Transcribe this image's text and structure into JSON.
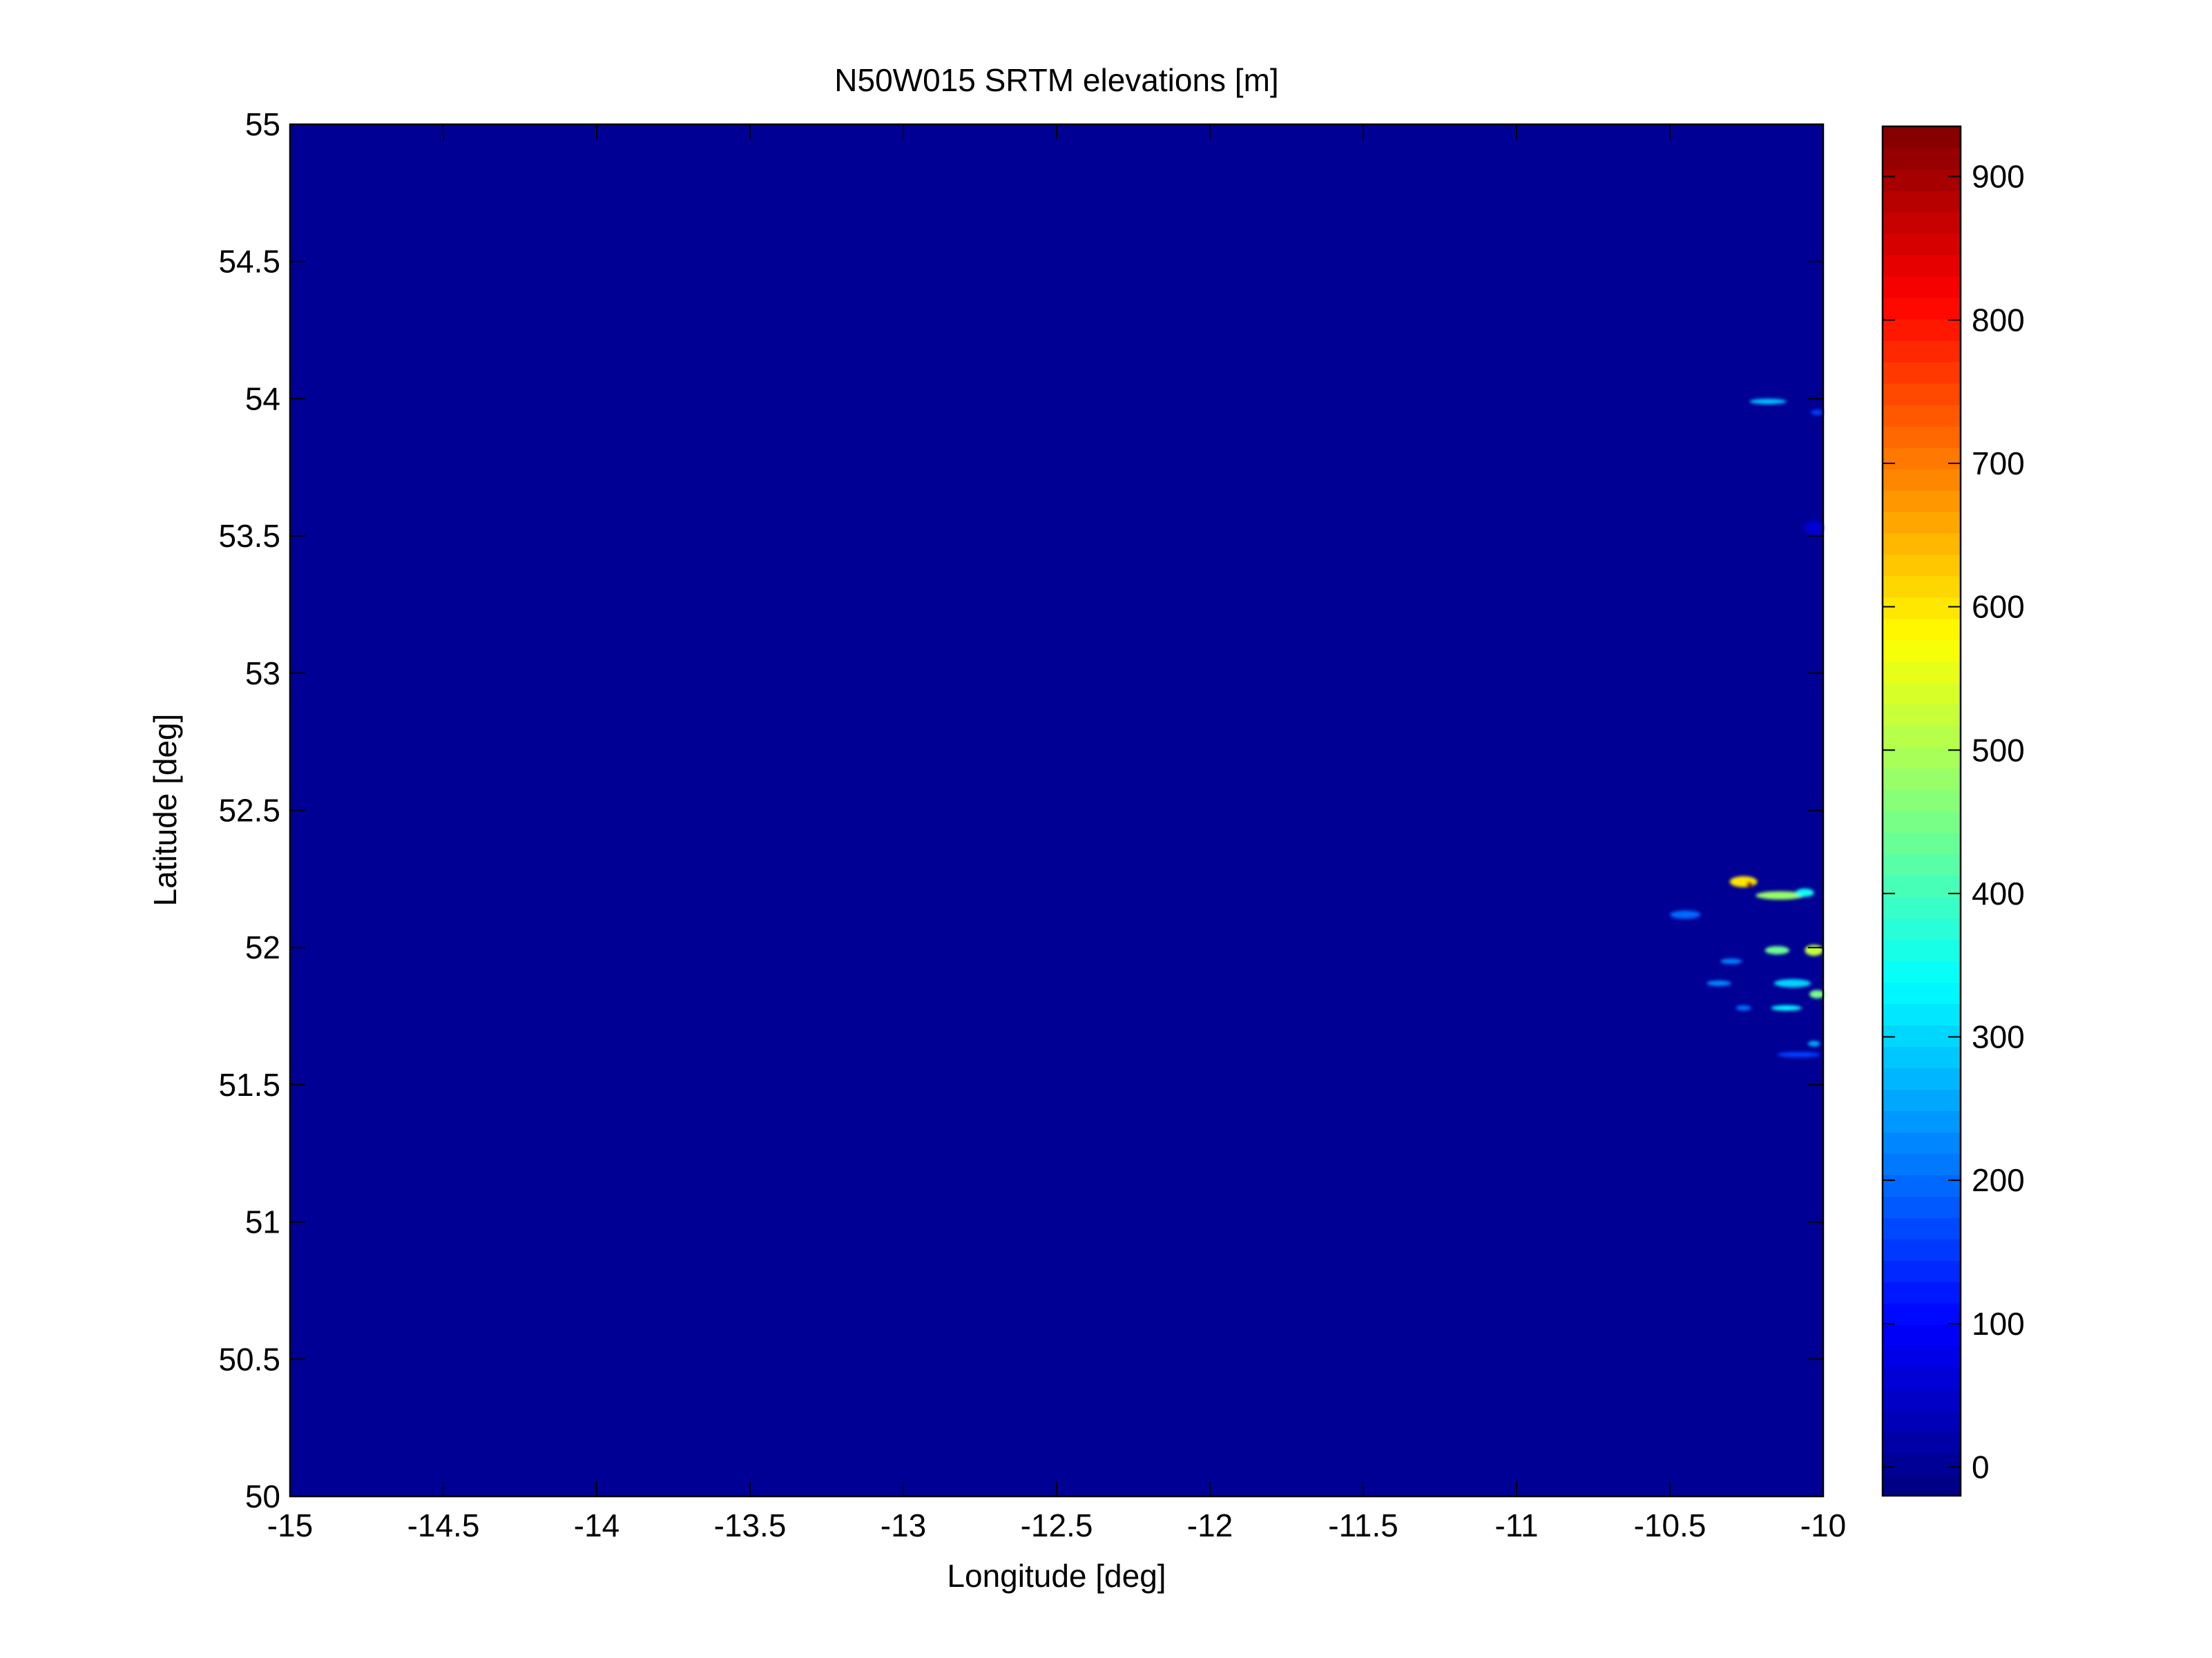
{
  "chart_data": {
    "type": "heatmap",
    "title": "N50W015 SRTM elevations [m]",
    "xlabel": "Longitude [deg]",
    "ylabel": "Latitude [deg]",
    "xlim": [
      -15,
      -10
    ],
    "ylim": [
      50,
      55
    ],
    "x_ticks": [
      -15,
      -14.5,
      -14,
      -13.5,
      -13,
      -12.5,
      -12,
      -11.5,
      -11,
      -10.5,
      -10
    ],
    "x_tick_labels": [
      "-15",
      "-14.5",
      "-14",
      "-13.5",
      "-13",
      "-12.5",
      "-12",
      "-11.5",
      "-11",
      "-10.5",
      "-10"
    ],
    "y_ticks": [
      50,
      50.5,
      51,
      51.5,
      52,
      52.5,
      53,
      53.5,
      54,
      54.5,
      55
    ],
    "y_tick_labels": [
      "50",
      "50.5",
      "51",
      "51.5",
      "52",
      "52.5",
      "53",
      "53.5",
      "54",
      "54.5",
      "55"
    ],
    "colormap": "jet",
    "background_value": 0,
    "colorbar": {
      "clim": [
        -20,
        935
      ],
      "ticks": [
        0,
        100,
        200,
        300,
        400,
        500,
        600,
        700,
        800,
        900
      ],
      "tick_labels": [
        "0",
        "100",
        "200",
        "300",
        "400",
        "500",
        "600",
        "700",
        "800",
        "900"
      ]
    },
    "features": [
      {
        "lon": -10.18,
        "lat": 53.99,
        "width_deg": 0.12,
        "height_deg": 0.02,
        "elevation": 280
      },
      {
        "lon": -10.02,
        "lat": 53.95,
        "width_deg": 0.04,
        "height_deg": 0.02,
        "elevation": 160
      },
      {
        "lon": -10.03,
        "lat": 53.53,
        "width_deg": 0.06,
        "height_deg": 0.05,
        "elevation": 60
      },
      {
        "lon": -10.45,
        "lat": 52.12,
        "width_deg": 0.1,
        "height_deg": 0.03,
        "elevation": 200
      },
      {
        "lon": -10.26,
        "lat": 52.24,
        "width_deg": 0.09,
        "height_deg": 0.04,
        "elevation": 600
      },
      {
        "lon": -10.24,
        "lat": 52.23,
        "width_deg": 0.02,
        "height_deg": 0.02,
        "elevation": 930
      },
      {
        "lon": -10.14,
        "lat": 52.19,
        "width_deg": 0.16,
        "height_deg": 0.03,
        "elevation": 480
      },
      {
        "lon": -10.06,
        "lat": 52.2,
        "width_deg": 0.06,
        "height_deg": 0.03,
        "elevation": 350
      },
      {
        "lon": -10.15,
        "lat": 51.99,
        "width_deg": 0.08,
        "height_deg": 0.03,
        "elevation": 440
      },
      {
        "lon": -10.03,
        "lat": 51.99,
        "width_deg": 0.06,
        "height_deg": 0.04,
        "elevation": 520
      },
      {
        "lon": -10.3,
        "lat": 51.95,
        "width_deg": 0.07,
        "height_deg": 0.02,
        "elevation": 220
      },
      {
        "lon": -10.34,
        "lat": 51.87,
        "width_deg": 0.08,
        "height_deg": 0.02,
        "elevation": 230
      },
      {
        "lon": -10.1,
        "lat": 51.87,
        "width_deg": 0.12,
        "height_deg": 0.03,
        "elevation": 300
      },
      {
        "lon": -10.02,
        "lat": 51.83,
        "width_deg": 0.05,
        "height_deg": 0.03,
        "elevation": 450
      },
      {
        "lon": -10.12,
        "lat": 51.78,
        "width_deg": 0.1,
        "height_deg": 0.02,
        "elevation": 330
      },
      {
        "lon": -10.26,
        "lat": 51.78,
        "width_deg": 0.05,
        "height_deg": 0.02,
        "elevation": 200
      },
      {
        "lon": -10.08,
        "lat": 51.61,
        "width_deg": 0.14,
        "height_deg": 0.02,
        "elevation": 160
      },
      {
        "lon": -10.03,
        "lat": 51.65,
        "width_deg": 0.04,
        "height_deg": 0.02,
        "elevation": 260
      }
    ]
  }
}
